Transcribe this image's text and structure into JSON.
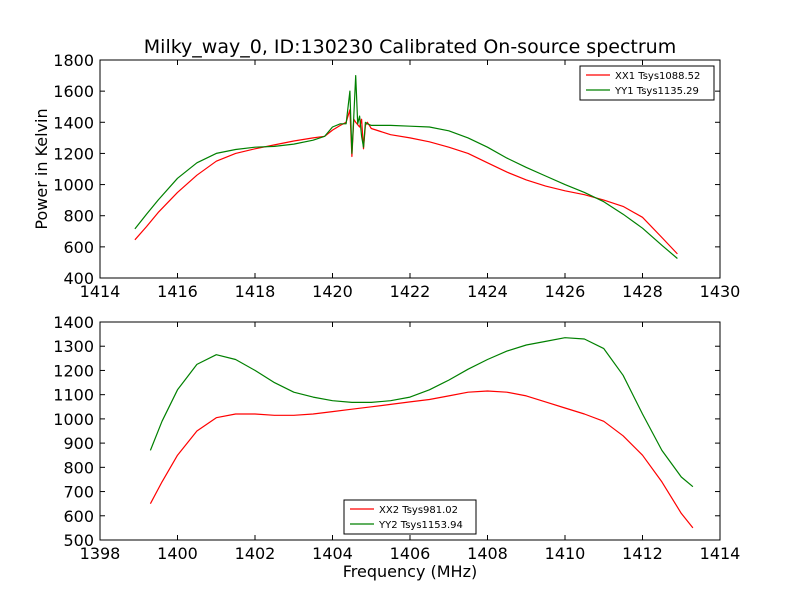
{
  "figure": {
    "title": "Milky_way_0, ID:130230 Calibrated On-source spectrum",
    "ylabel": "Power in Kelvin",
    "xlabel": "Frequency (MHz)"
  },
  "chart_data": [
    {
      "type": "line",
      "xlim": [
        1414,
        1430
      ],
      "ylim": [
        400,
        1800
      ],
      "xticks": [
        1414,
        1416,
        1418,
        1420,
        1422,
        1424,
        1426,
        1428,
        1430
      ],
      "yticks": [
        400,
        600,
        800,
        1000,
        1200,
        1400,
        1600,
        1800
      ],
      "legend": "top-right",
      "series": [
        {
          "name": "XX1 Tsys1088.52",
          "color": "#ff0000",
          "x": [
            1414.9,
            1415.2,
            1415.5,
            1416.0,
            1416.5,
            1417.0,
            1417.5,
            1418.0,
            1418.5,
            1419.0,
            1419.5,
            1419.8,
            1420.0,
            1420.2,
            1420.35,
            1420.45,
            1420.5,
            1420.55,
            1420.6,
            1420.7,
            1420.75,
            1420.8,
            1420.85,
            1420.9,
            1421.0,
            1421.5,
            1422.0,
            1422.5,
            1423.0,
            1423.5,
            1424.0,
            1424.5,
            1425.0,
            1425.5,
            1426.0,
            1426.5,
            1427.0,
            1427.5,
            1428.0,
            1428.5,
            1428.9
          ],
          "y": [
            645,
            730,
            820,
            950,
            1060,
            1150,
            1200,
            1230,
            1255,
            1280,
            1300,
            1310,
            1350,
            1380,
            1400,
            1480,
            1180,
            1420,
            1400,
            1370,
            1420,
            1230,
            1380,
            1400,
            1360,
            1320,
            1300,
            1275,
            1240,
            1200,
            1140,
            1080,
            1030,
            990,
            960,
            935,
            900,
            860,
            790,
            660,
            555
          ]
        },
        {
          "name": "YY1 Tsys1135.29",
          "color": "#008000",
          "x": [
            1414.9,
            1415.2,
            1415.5,
            1416.0,
            1416.5,
            1417.0,
            1417.5,
            1418.0,
            1418.5,
            1419.0,
            1419.5,
            1419.8,
            1420.0,
            1420.2,
            1420.35,
            1420.45,
            1420.5,
            1420.55,
            1420.6,
            1420.65,
            1420.7,
            1420.75,
            1420.8,
            1420.85,
            1420.9,
            1421.0,
            1421.5,
            1422.0,
            1422.5,
            1423.0,
            1423.5,
            1424.0,
            1424.5,
            1425.0,
            1425.5,
            1426.0,
            1426.5,
            1427.0,
            1427.5,
            1428.0,
            1428.5,
            1428.9
          ],
          "y": [
            715,
            810,
            900,
            1040,
            1140,
            1200,
            1225,
            1240,
            1245,
            1260,
            1285,
            1310,
            1370,
            1390,
            1390,
            1600,
            1200,
            1440,
            1700,
            1390,
            1440,
            1310,
            1240,
            1400,
            1390,
            1380,
            1380,
            1375,
            1370,
            1345,
            1300,
            1240,
            1170,
            1110,
            1055,
            1000,
            950,
            890,
            810,
            720,
            610,
            525
          ]
        }
      ]
    },
    {
      "type": "line",
      "xlim": [
        1398,
        1414
      ],
      "ylim": [
        500,
        1400
      ],
      "xticks": [
        1398,
        1400,
        1402,
        1404,
        1406,
        1408,
        1410,
        1412,
        1414
      ],
      "yticks": [
        500,
        600,
        700,
        800,
        900,
        1000,
        1100,
        1200,
        1300,
        1400
      ],
      "legend": "bottom-center",
      "series": [
        {
          "name": "XX2 Tsys981.02",
          "color": "#ff0000",
          "x": [
            1399.3,
            1399.6,
            1400.0,
            1400.5,
            1401.0,
            1401.5,
            1402.0,
            1402.5,
            1403.0,
            1403.5,
            1404.0,
            1404.5,
            1405.0,
            1405.5,
            1406.0,
            1406.5,
            1407.0,
            1407.5,
            1408.0,
            1408.5,
            1409.0,
            1409.5,
            1410.0,
            1410.5,
            1411.0,
            1411.5,
            1412.0,
            1412.5,
            1413.0,
            1413.3
          ],
          "y": [
            650,
            740,
            850,
            950,
            1005,
            1020,
            1020,
            1015,
            1015,
            1020,
            1030,
            1040,
            1050,
            1060,
            1070,
            1080,
            1095,
            1110,
            1115,
            1110,
            1095,
            1070,
            1045,
            1020,
            990,
            930,
            850,
            740,
            610,
            550
          ]
        },
        {
          "name": "YY2 Tsys1153.94",
          "color": "#008000",
          "x": [
            1399.3,
            1399.6,
            1400.0,
            1400.5,
            1401.0,
            1401.5,
            1402.0,
            1402.5,
            1403.0,
            1403.5,
            1404.0,
            1404.5,
            1405.0,
            1405.5,
            1406.0,
            1406.5,
            1407.0,
            1407.5,
            1408.0,
            1408.5,
            1409.0,
            1409.5,
            1410.0,
            1410.5,
            1411.0,
            1411.5,
            1412.0,
            1412.5,
            1413.0,
            1413.3
          ],
          "y": [
            870,
            990,
            1120,
            1225,
            1265,
            1245,
            1200,
            1150,
            1110,
            1090,
            1075,
            1068,
            1068,
            1075,
            1090,
            1120,
            1160,
            1205,
            1245,
            1280,
            1305,
            1320,
            1335,
            1330,
            1290,
            1180,
            1020,
            870,
            760,
            720
          ]
        }
      ]
    }
  ]
}
